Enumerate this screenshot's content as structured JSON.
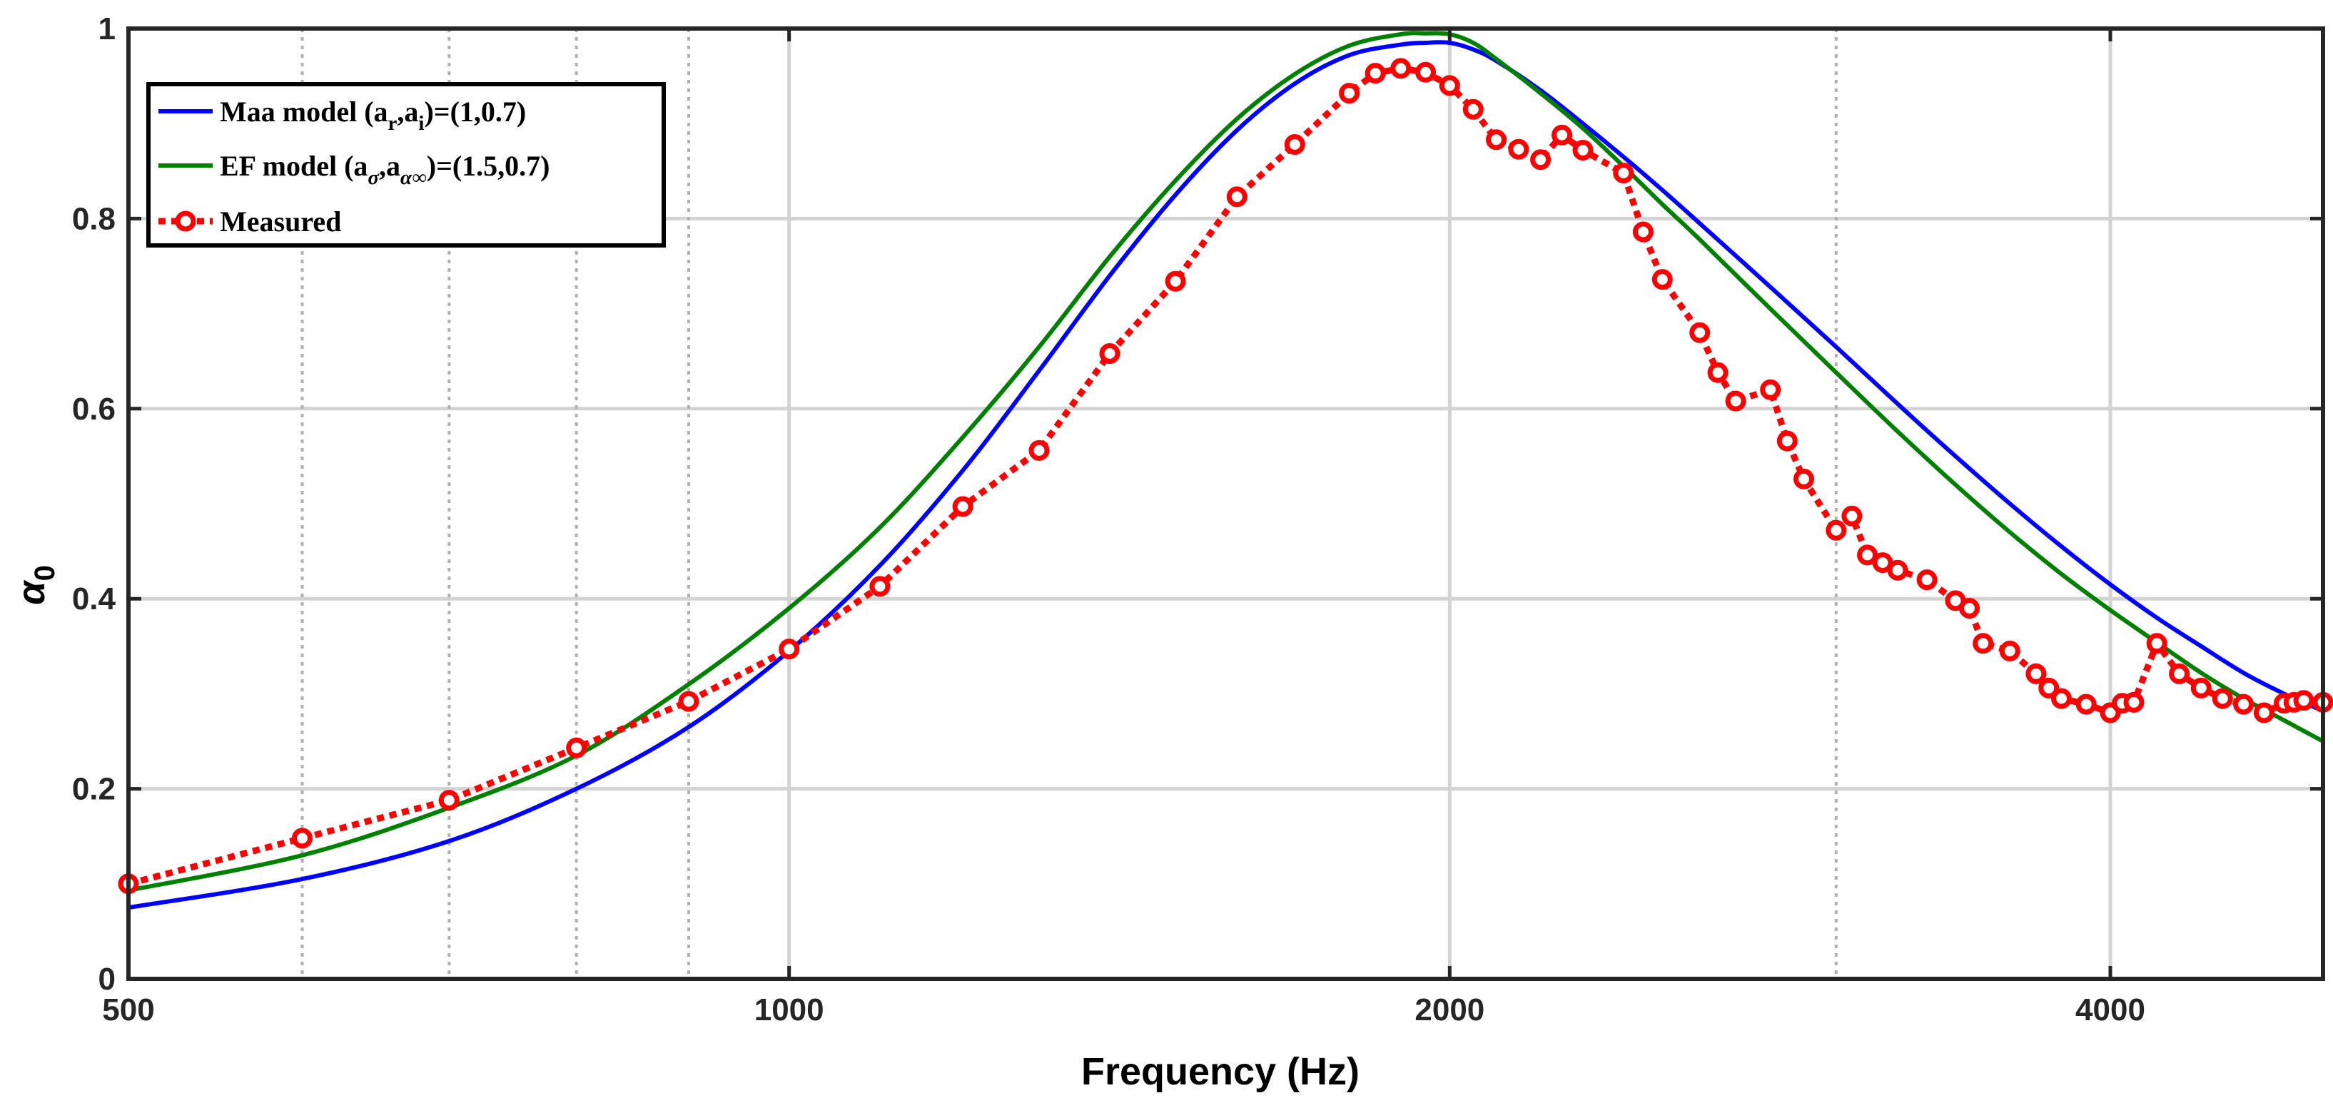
{
  "chart_data": {
    "type": "line",
    "title": "",
    "xlabel": "Frequency (Hz)",
    "ylabel": "α",
    "ylabel_subscript": "0",
    "xscale": "log",
    "xlim": [
      500,
      5000
    ],
    "ylim": [
      0,
      1
    ],
    "grid": true,
    "legend_position": "top-left",
    "x_ticks": [
      500,
      1000,
      2000,
      4000
    ],
    "x_tick_labels": [
      "500",
      "1000",
      "2000",
      "4000"
    ],
    "x_minor_grid": [
      600,
      700,
      800,
      900
    ],
    "y_ticks": [
      0,
      0.2,
      0.4,
      0.6,
      0.8,
      1
    ],
    "y_tick_labels": [
      "0",
      "0.2",
      "0.4",
      "0.6",
      "0.8",
      "1"
    ],
    "legend": {
      "maa": {
        "text": "Maa model (a",
        "sub1": "r",
        "mid": ",a",
        "sub2": "i",
        "tail": ")=(1,0.7)"
      },
      "ef": {
        "text": "EF model (a",
        "sub1": "σ",
        "mid": ",a",
        "sub2": "α∞",
        "tail": ")=(1.5,0.7)"
      },
      "measured": {
        "text": "Measured"
      }
    },
    "series": [
      {
        "name": "Maa model (ar,ai)=(1,0.7)",
        "style": "solid",
        "color": "#0000ff",
        "x": [
          500,
          600,
          700,
          800,
          900,
          1000,
          1100,
          1200,
          1300,
          1400,
          1500,
          1600,
          1700,
          1800,
          1900,
          1950,
          2000,
          2050,
          2100,
          2200,
          2300,
          2400,
          2500,
          2600,
          2800,
          3000,
          3200,
          3400,
          3600,
          3800,
          4000,
          4200,
          4400,
          4600,
          4800,
          5000
        ],
        "y": [
          0.075,
          0.105,
          0.145,
          0.2,
          0.265,
          0.345,
          0.435,
          0.535,
          0.64,
          0.74,
          0.825,
          0.893,
          0.942,
          0.972,
          0.983,
          0.985,
          0.985,
          0.978,
          0.966,
          0.935,
          0.9,
          0.865,
          0.83,
          0.795,
          0.728,
          0.665,
          0.605,
          0.55,
          0.5,
          0.455,
          0.415,
          0.38,
          0.35,
          0.322,
          0.3,
          0.282
        ]
      },
      {
        "name": "EF model (aσ,aα∞)=(1.5,0.7)",
        "style": "solid",
        "color": "#008000",
        "x": [
          500,
          600,
          700,
          800,
          900,
          1000,
          1100,
          1200,
          1300,
          1400,
          1500,
          1600,
          1700,
          1800,
          1900,
          1950,
          2000,
          2050,
          2100,
          2200,
          2300,
          2400,
          2500,
          2600,
          2800,
          3000,
          3200,
          3400,
          3600,
          3800,
          4000,
          4200,
          4400,
          4600,
          4800,
          5000
        ],
        "y": [
          0.093,
          0.13,
          0.18,
          0.235,
          0.31,
          0.39,
          0.475,
          0.57,
          0.665,
          0.76,
          0.84,
          0.905,
          0.952,
          0.982,
          0.994,
          0.995,
          0.994,
          0.985,
          0.968,
          0.932,
          0.895,
          0.855,
          0.815,
          0.778,
          0.705,
          0.638,
          0.576,
          0.52,
          0.47,
          0.426,
          0.388,
          0.354,
          0.322,
          0.295,
          0.272,
          0.25
        ]
      },
      {
        "name": "Measured",
        "style": "dotted",
        "marker": "circle",
        "color": "#ff0000",
        "x": [
          500,
          600,
          700,
          800,
          900,
          1000,
          1100,
          1200,
          1300,
          1400,
          1500,
          1600,
          1700,
          1800,
          1850,
          1900,
          1950,
          2000,
          2050,
          2100,
          2150,
          2200,
          2250,
          2300,
          2400,
          2450,
          2500,
          2600,
          2650,
          2700,
          2800,
          2850,
          2900,
          3000,
          3050,
          3100,
          3150,
          3200,
          3300,
          3400,
          3450,
          3500,
          3600,
          3700,
          3750,
          3800,
          3900,
          4000,
          4050,
          4100,
          4200,
          4300,
          4400,
          4500,
          4600,
          4700,
          4800,
          4850,
          4900,
          5000
        ],
        "y": [
          0.1,
          0.148,
          0.188,
          0.243,
          0.292,
          0.347,
          0.413,
          0.497,
          0.556,
          0.658,
          0.734,
          0.823,
          0.878,
          0.932,
          0.953,
          0.958,
          0.954,
          0.94,
          0.915,
          0.883,
          0.873,
          0.862,
          0.888,
          0.872,
          0.848,
          0.786,
          0.736,
          0.68,
          0.638,
          0.608,
          0.62,
          0.566,
          0.526,
          0.472,
          0.487,
          0.446,
          0.438,
          0.43,
          0.42,
          0.398,
          0.39,
          0.353,
          0.345,
          0.321,
          0.306,
          0.295,
          0.289,
          0.28,
          0.29,
          0.291,
          0.353,
          0.321,
          0.306,
          0.295,
          0.289,
          0.28,
          0.29,
          0.291,
          0.293,
          0.291
        ]
      }
    ]
  }
}
